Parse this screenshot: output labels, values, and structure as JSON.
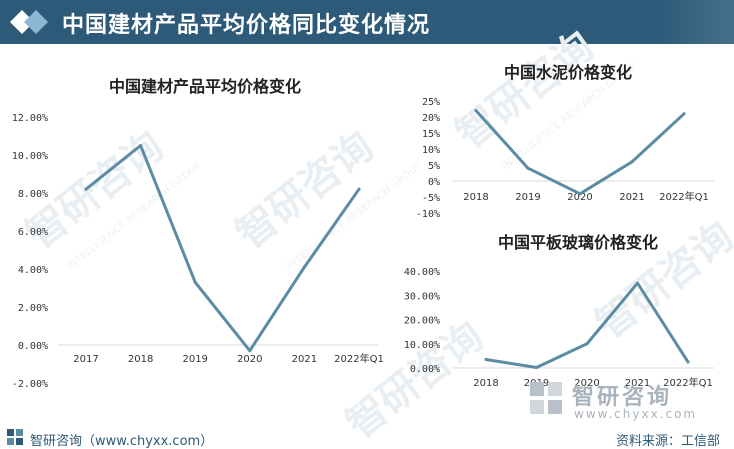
{
  "header": {
    "title": "中国建材产品平均价格同比变化情况"
  },
  "footer": {
    "source_left": "智研咨询（www.chyxx.com）",
    "source_right": "资料来源：工信部"
  },
  "brand": {
    "name": "智研咨询",
    "url": "www.chyxx.com"
  },
  "watermark": {
    "name": "智研咨询",
    "slogan": "INTELLIGENCE RESEARCH GROUP"
  },
  "colors": {
    "header_bg": "#2c5a78",
    "line": "#5b8ca3",
    "text": "#2c5a78"
  },
  "chart_data": [
    {
      "type": "line",
      "title": "中国建材产品平均价格变化",
      "categories": [
        "2017",
        "2018",
        "2019",
        "2020",
        "2021",
        "2022年Q1"
      ],
      "values": [
        8.2,
        10.5,
        3.3,
        -0.3,
        4.1,
        8.2
      ],
      "yticks": [
        "12.00%",
        "10.00%",
        "8.00%",
        "6.00%",
        "4.00%",
        "2.00%",
        "0.00%",
        "-2.00%"
      ],
      "ylim": [
        -2,
        12
      ],
      "unit": "%",
      "grid": false
    },
    {
      "type": "line",
      "title": "中国水泥价格变化",
      "categories": [
        "2018",
        "2019",
        "2020",
        "2021",
        "2022年Q1"
      ],
      "values": [
        22,
        4,
        -4,
        6,
        21
      ],
      "yticks": [
        "25%",
        "20%",
        "15%",
        "10%",
        "5%",
        "0%",
        "-5%",
        "-10%"
      ],
      "ylim": [
        -10,
        25
      ],
      "unit": "%",
      "grid": false
    },
    {
      "type": "line",
      "title": "中国平板玻璃价格变化",
      "categories": [
        "2018",
        "2019",
        "2020",
        "2021",
        "2022年Q1"
      ],
      "values": [
        3.5,
        0.2,
        10,
        35,
        2.5
      ],
      "yticks": [
        "40.00%",
        "30.00%",
        "20.00%",
        "10.00%",
        "0.00%"
      ],
      "ylim": [
        0,
        40
      ],
      "unit": "%",
      "grid": false
    }
  ]
}
